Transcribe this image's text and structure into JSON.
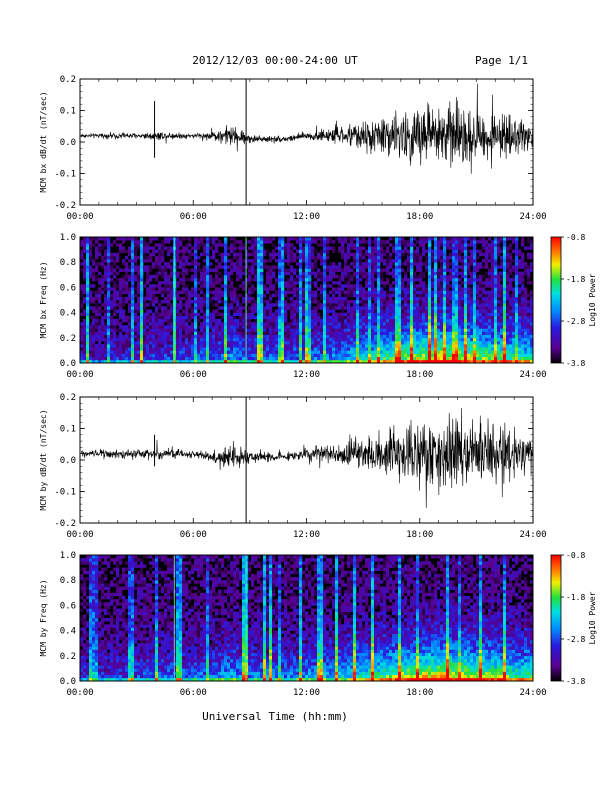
{
  "header": {
    "title": "2012/12/03  00:00-24:00 UT",
    "page": "Page 1/1"
  },
  "footer": {
    "xlabel": "Universal Time (hh:mm)"
  },
  "colors": {
    "waveform": "#000000",
    "colormap": [
      "#000000",
      "#5a0090",
      "#2a1ae0",
      "#0090ff",
      "#00e0e0",
      "#20e040",
      "#f0f000",
      "#ff7a00",
      "#ff0000"
    ]
  },
  "chart_data": [
    {
      "type": "line",
      "ylabel": "MCM bx dB/dt (nT/sec)",
      "xlim": [
        "00:00",
        "24:00"
      ],
      "ylim": [
        -0.2,
        0.2
      ],
      "x_ticks": [
        "00:00",
        "06:00",
        "12:00",
        "18:00",
        "24:00"
      ],
      "y_ticks": [
        "0.2",
        "0.1",
        "0.0",
        "-0.1",
        "-0.2"
      ],
      "series": [
        {
          "x_hours": [
            0,
            1,
            2,
            3,
            4,
            5,
            6,
            7,
            8,
            9,
            10,
            11,
            12,
            13,
            14,
            15,
            16,
            17,
            18,
            19,
            20,
            21,
            22,
            23,
            24
          ],
          "mean": [
            0.02,
            0.02,
            0.02,
            0.02,
            0.02,
            0.02,
            0.02,
            0.02,
            0.02,
            0.01,
            0.01,
            0.01,
            0.02,
            0.02,
            0.02,
            0.02,
            0.02,
            0.02,
            0.02,
            0.02,
            0.02,
            0.02,
            0.02,
            0.02,
            0.02
          ],
          "amplitude": [
            0.01,
            0.01,
            0.015,
            0.012,
            0.02,
            0.015,
            0.01,
            0.02,
            0.05,
            0.02,
            0.015,
            0.015,
            0.02,
            0.03,
            0.04,
            0.06,
            0.08,
            0.11,
            0.13,
            0.15,
            0.13,
            0.12,
            0.1,
            0.08,
            0.06
          ]
        }
      ],
      "spikes": [
        {
          "x_hours": 3.95,
          "min": -0.05,
          "max": 0.13
        },
        {
          "x_hours": 8.8,
          "min": -0.2,
          "max": 0.2
        }
      ]
    },
    {
      "type": "heatmap",
      "ylabel": "MCM bx Freq (Hz)",
      "colorbar_label": "Log10 Power",
      "colorbar_ticks": [
        "-0.8",
        "-1.8",
        "-2.8",
        "-3.8"
      ],
      "clim": [
        -3.8,
        -0.8
      ],
      "xlim": [
        "00:00",
        "24:00"
      ],
      "ylim": [
        0.0,
        1.0
      ],
      "x_ticks": [
        "00:00",
        "06:00",
        "12:00",
        "18:00",
        "24:00"
      ],
      "y_ticks": [
        "1.0",
        "0.8",
        "0.6",
        "0.4",
        "0.2",
        "0.0"
      ],
      "activity_by_hour": [
        0.15,
        0.15,
        0.2,
        0.2,
        0.25,
        0.25,
        0.25,
        0.3,
        0.4,
        0.3,
        0.3,
        0.3,
        0.35,
        0.4,
        0.45,
        0.55,
        0.65,
        0.75,
        0.85,
        0.9,
        0.85,
        0.8,
        0.75,
        0.65,
        0.6
      ],
      "bright_lines_hours": [
        5.0,
        8.8
      ]
    },
    {
      "type": "line",
      "ylabel": "MCM by dB/dt (nT/sec)",
      "xlim": [
        "00:00",
        "24:00"
      ],
      "ylim": [
        -0.2,
        0.2
      ],
      "x_ticks": [
        "00:00",
        "06:00",
        "12:00",
        "18:00",
        "24:00"
      ],
      "y_ticks": [
        "0.2",
        "0.1",
        "0.0",
        "-0.1",
        "-0.2"
      ],
      "series": [
        {
          "x_hours": [
            0,
            1,
            2,
            3,
            4,
            5,
            6,
            7,
            8,
            9,
            10,
            11,
            12,
            13,
            14,
            15,
            16,
            17,
            18,
            19,
            20,
            21,
            22,
            23,
            24
          ],
          "mean": [
            0.02,
            0.02,
            0.02,
            0.02,
            0.02,
            0.02,
            0.02,
            0.01,
            0.01,
            0.01,
            0.01,
            0.01,
            0.02,
            0.02,
            0.02,
            0.02,
            0.02,
            0.02,
            0.02,
            0.02,
            0.02,
            0.02,
            0.02,
            0.02,
            0.02
          ],
          "amplitude": [
            0.015,
            0.015,
            0.02,
            0.02,
            0.03,
            0.02,
            0.015,
            0.02,
            0.06,
            0.03,
            0.02,
            0.02,
            0.03,
            0.04,
            0.05,
            0.07,
            0.1,
            0.13,
            0.15,
            0.17,
            0.16,
            0.15,
            0.13,
            0.11,
            0.09
          ]
        }
      ],
      "spikes": [
        {
          "x_hours": 3.95,
          "min": -0.02,
          "max": 0.08
        },
        {
          "x_hours": 8.8,
          "min": -0.2,
          "max": 0.2
        }
      ]
    },
    {
      "type": "heatmap",
      "ylabel": "MCM by Freq (Hz)",
      "colorbar_label": "Log10 Power",
      "colorbar_ticks": [
        "-0.8",
        "-1.8",
        "-2.8",
        "-3.8"
      ],
      "clim": [
        -3.8,
        -0.8
      ],
      "xlim": [
        "00:00",
        "24:00"
      ],
      "ylim": [
        0.0,
        1.0
      ],
      "x_ticks": [
        "00:00",
        "06:00",
        "12:00",
        "18:00",
        "24:00"
      ],
      "y_ticks": [
        "1.0",
        "0.8",
        "0.6",
        "0.4",
        "0.2",
        "0.0"
      ],
      "activity_by_hour": [
        0.2,
        0.2,
        0.25,
        0.25,
        0.3,
        0.3,
        0.3,
        0.35,
        0.45,
        0.35,
        0.35,
        0.35,
        0.4,
        0.45,
        0.5,
        0.6,
        0.7,
        0.8,
        0.9,
        0.95,
        0.9,
        0.85,
        0.8,
        0.7,
        0.65
      ],
      "bright_lines_hours": [
        5.0,
        8.8
      ]
    }
  ]
}
